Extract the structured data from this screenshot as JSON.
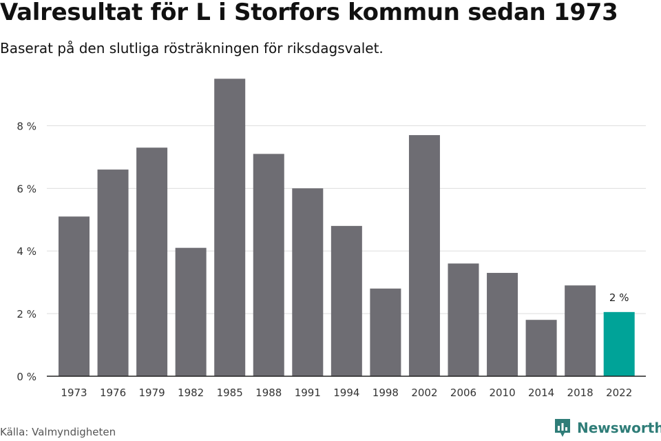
{
  "header": {
    "title": "Valresultat för L i Storfors kommun sedan 1973",
    "subtitle": "Baserat på den slutliga rösträkningen för riksdagsvalet."
  },
  "footer": {
    "source": "Källa: Valmyndigheten",
    "brand": "Newsworthy"
  },
  "colors": {
    "bar": "#6e6d73",
    "highlight": "#00a398",
    "grid": "#dddddd",
    "brand": "#2f7d78"
  },
  "chart_data": {
    "type": "bar",
    "title": "Valresultat för L i Storfors kommun sedan 1973",
    "subtitle": "Baserat på den slutliga rösträkningen för riksdagsvalet.",
    "categories": [
      "1973",
      "1976",
      "1979",
      "1982",
      "1985",
      "1988",
      "1991",
      "1994",
      "1998",
      "2002",
      "2006",
      "2010",
      "2014",
      "2018",
      "2022"
    ],
    "values": [
      5.1,
      6.6,
      7.3,
      4.1,
      9.5,
      7.1,
      6.0,
      4.8,
      2.8,
      7.7,
      3.6,
      3.3,
      1.8,
      2.9,
      2.05
    ],
    "highlight_index": 14,
    "data_labels": [
      {
        "index": 14,
        "text": "2 %"
      }
    ],
    "yticks": [
      0,
      2,
      4,
      6,
      8
    ],
    "ytick_labels": [
      "0 %",
      "2 %",
      "4 %",
      "6 %",
      "8 %"
    ],
    "ylim": [
      0,
      10
    ],
    "grid": true,
    "xlabel": "",
    "ylabel": ""
  }
}
